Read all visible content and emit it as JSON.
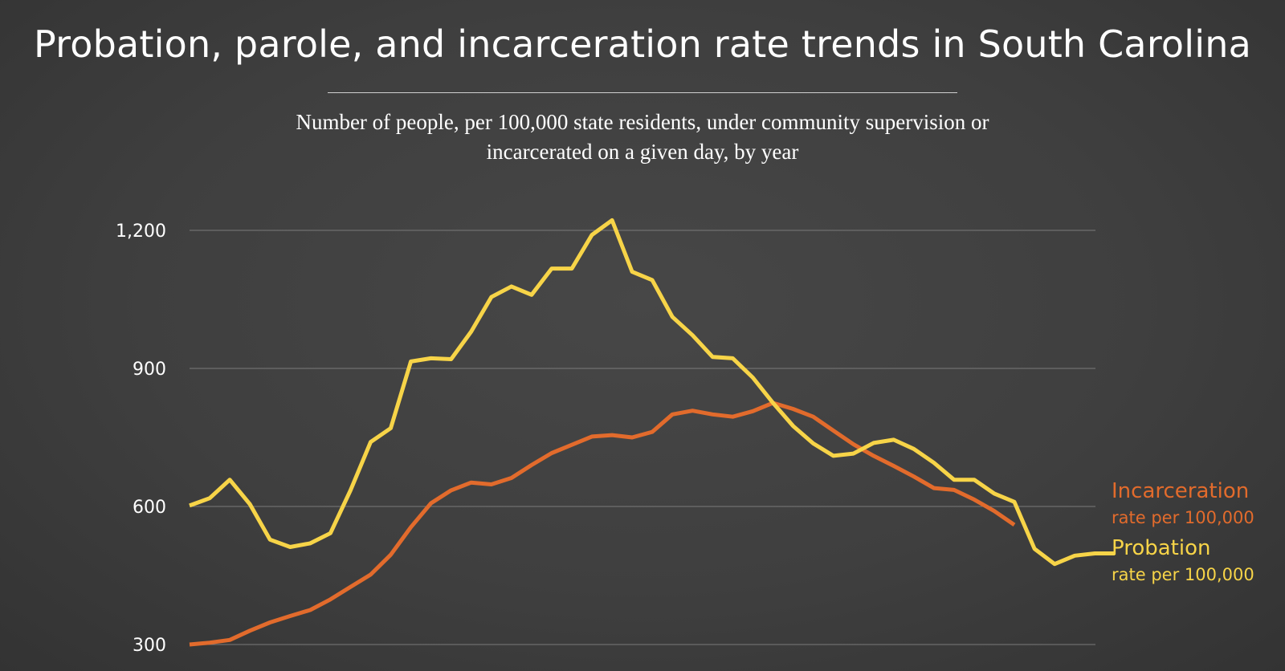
{
  "header": {
    "title": "Probation, parole, and incarceration rate trends in South Carolina",
    "subtitle": "Number of people, per 100,000 state residents, under community supervision or incarcerated on a given day, by year"
  },
  "chart_data": {
    "type": "line",
    "title": "Probation, parole, and incarceration rate trends in South Carolina",
    "subtitle": "Number of people, per 100,000 state residents, under community supervision or incarcerated on a given day, by year",
    "xlabel": "",
    "ylabel": "",
    "ylim": [
      300,
      1200
    ],
    "yticks": [
      300,
      600,
      900,
      1200
    ],
    "ytick_labels": [
      "300",
      "600",
      "900",
      "1,200"
    ],
    "grid": true,
    "legend": "right",
    "series": [
      {
        "key": "incarceration",
        "name": "Incarceration",
        "sublabel": "rate per 100,000",
        "color": "#e26b2c",
        "values": [
          300,
          304,
          310,
          330,
          348,
          362,
          375,
          398,
          425,
          452,
          495,
          555,
          607,
          635,
          652,
          648,
          662,
          690,
          716,
          734,
          752,
          755,
          750,
          762,
          800,
          808,
          800,
          795,
          807,
          825,
          812,
          795,
          765,
          735,
          710,
          688,
          665,
          640,
          636,
          615,
          590,
          560
        ]
      },
      {
        "key": "probation",
        "name": "Probation",
        "sublabel": "rate per 100,000",
        "color": "#f7d448",
        "values": [
          602,
          618,
          658,
          605,
          528,
          512,
          520,
          542,
          635,
          740,
          770,
          915,
          922,
          920,
          980,
          1055,
          1078,
          1060,
          1117,
          1117,
          1190,
          1222,
          1110,
          1092,
          1012,
          972,
          925,
          922,
          880,
          825,
          775,
          737,
          710,
          715,
          738,
          745,
          725,
          695,
          658,
          658,
          628,
          610,
          508,
          475,
          493,
          498,
          498
        ]
      }
    ]
  }
}
